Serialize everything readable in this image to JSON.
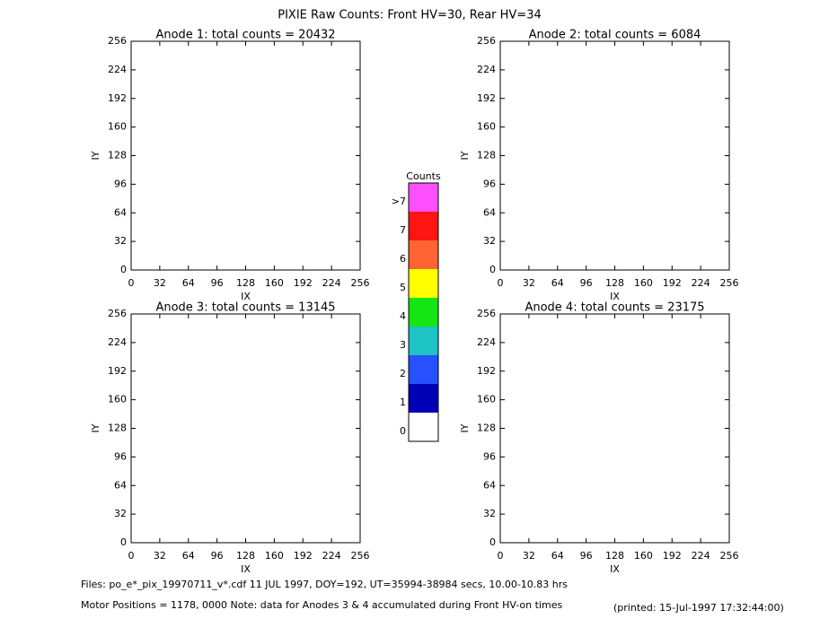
{
  "title": "PIXIE Raw Counts:  Front HV=30, Rear HV=34",
  "chart_data": [
    {
      "type": "heatmap",
      "title": "Anode 1: total counts = 20432",
      "x_label": "IX",
      "y_label": "IY",
      "xlim": [
        0,
        256
      ],
      "ylim": [
        0,
        256
      ],
      "xticks": [
        0,
        32,
        64,
        96,
        128,
        160,
        192,
        224,
        256
      ],
      "yticks": [
        0,
        32,
        64,
        96,
        128,
        160,
        192,
        224,
        256
      ]
    },
    {
      "type": "heatmap",
      "title": "Anode 2: total counts = 6084",
      "x_label": "IX",
      "y_label": "IY",
      "xlim": [
        0,
        256
      ],
      "ylim": [
        0,
        256
      ],
      "xticks": [
        0,
        32,
        64,
        96,
        128,
        160,
        192,
        224,
        256
      ],
      "yticks": [
        0,
        32,
        64,
        96,
        128,
        160,
        192,
        224,
        256
      ]
    },
    {
      "type": "heatmap",
      "title": "Anode 3: total counts = 13145",
      "x_label": "IX",
      "y_label": "IY",
      "xlim": [
        0,
        256
      ],
      "ylim": [
        0,
        256
      ],
      "xticks": [
        0,
        32,
        64,
        96,
        128,
        160,
        192,
        224,
        256
      ],
      "yticks": [
        0,
        32,
        64,
        96,
        128,
        160,
        192,
        224,
        256
      ]
    },
    {
      "type": "heatmap",
      "title": "Anode 4: total counts = 23175",
      "x_label": "IX",
      "y_label": "IY",
      "xlim": [
        0,
        256
      ],
      "ylim": [
        0,
        256
      ],
      "xticks": [
        0,
        32,
        64,
        96,
        128,
        160,
        192,
        224,
        256
      ],
      "yticks": [
        0,
        32,
        64,
        96,
        128,
        160,
        192,
        224,
        256
      ]
    }
  ],
  "colorbar": {
    "title": "Counts",
    "labels": [
      "0",
      "1",
      "2",
      "3",
      "4",
      "5",
      "6",
      "7",
      ">7"
    ],
    "colors": [
      "#ffffff",
      "#0000b4",
      "#2850ff",
      "#1ec3c3",
      "#14e614",
      "#ffff00",
      "#ff6432",
      "#ff1414",
      "#ff50ff"
    ]
  },
  "footer": {
    "files": "Files: po_e*_pix_19970711_v*.cdf    11 JUL 1997, DOY=192, UT=35994-38984 secs, 10.00-10.83 hrs",
    "motor": "Motor Positions = 1178, 0000   Note: data for Anodes 3 & 4 accumulated during Front HV-on times",
    "printed": "(printed: 15-Jul-1997 17:32:44:00)"
  }
}
